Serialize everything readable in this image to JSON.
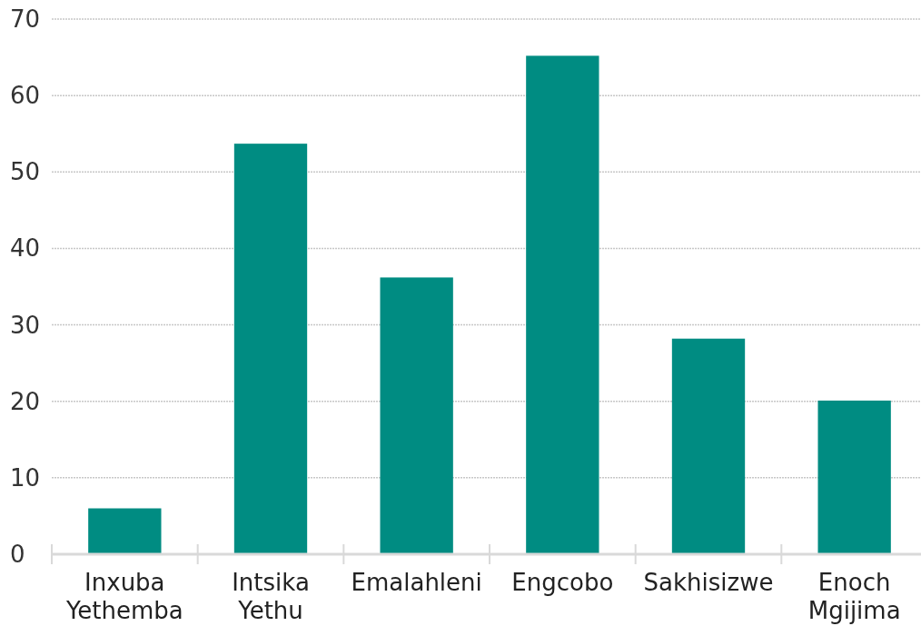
{
  "chart_data": {
    "type": "bar",
    "categories": [
      "Inxuba Yethemba",
      "Intsika Yethu",
      "Emalahleni",
      "Engcobo",
      "Sakhisizwe",
      "Enoch Mgijima"
    ],
    "values": [
      6,
      53.7,
      36.2,
      65.2,
      28.2,
      20.1
    ],
    "color": "#008c82",
    "ylim": [
      0,
      70
    ],
    "yticks": [
      0,
      10,
      20,
      30,
      40,
      50,
      60,
      70
    ],
    "grid": "y"
  }
}
